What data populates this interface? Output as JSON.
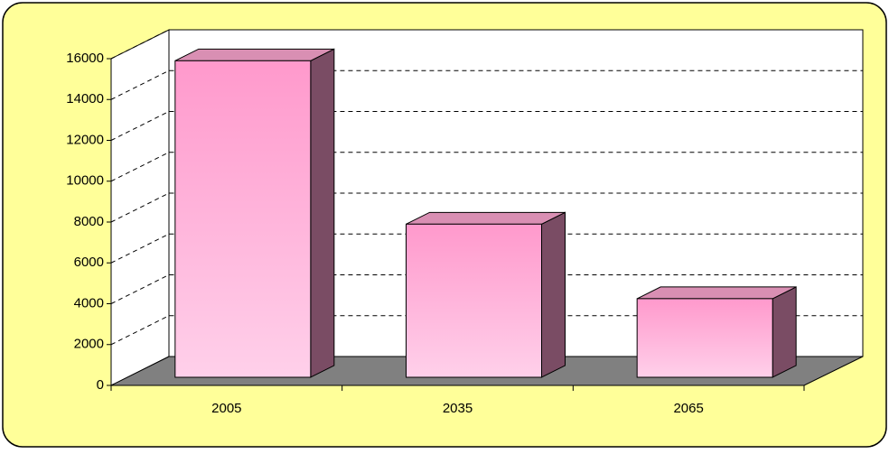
{
  "chart_data": {
    "type": "bar3d",
    "categories": [
      "2005",
      "2035",
      "2065"
    ],
    "values": [
      15500,
      7500,
      3850
    ],
    "color": "#ff99cc",
    "ylim": [
      0,
      16000
    ],
    "yticks": [
      0,
      2000,
      4000,
      6000,
      8000,
      10000,
      12000,
      14000,
      16000
    ],
    "grid": true
  }
}
